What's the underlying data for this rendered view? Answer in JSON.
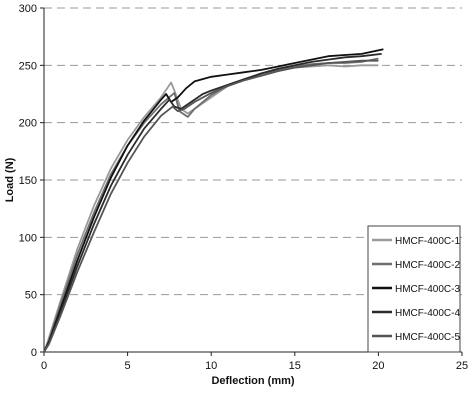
{
  "chart_data": {
    "type": "line",
    "title": "",
    "xlabel": "Deflection (mm)",
    "ylabel": "Load (N)",
    "xlim": [
      0,
      25
    ],
    "ylim": [
      0,
      300
    ],
    "x_ticks": [
      0,
      5,
      10,
      15,
      20,
      25
    ],
    "y_ticks": [
      0,
      50,
      100,
      150,
      200,
      250,
      300
    ],
    "grid": "horizontal dashed",
    "legend_position": "right, lower",
    "series": [
      {
        "name": "HMCF-400C-1",
        "color": "#9a9a9a",
        "x": [
          0,
          0.2,
          1,
          2,
          3,
          4,
          5,
          6,
          7,
          7.6,
          7.8,
          8.2,
          8.6,
          9,
          10,
          11,
          12,
          13,
          14,
          15,
          16,
          17,
          18,
          19,
          20
        ],
        "y": [
          0,
          8,
          45,
          90,
          128,
          160,
          185,
          205,
          222,
          235,
          228,
          212,
          208,
          212,
          222,
          232,
          238,
          242,
          246,
          248,
          249,
          250,
          249,
          250,
          250
        ]
      },
      {
        "name": "HMCF-400C-2",
        "color": "#6e6e6e",
        "x": [
          0,
          0.3,
          1,
          2,
          3,
          4,
          5,
          6,
          7,
          7.8,
          8.1,
          8.6,
          9,
          10,
          11,
          12,
          13,
          14,
          15,
          16,
          17,
          18,
          19,
          20
        ],
        "y": [
          0,
          10,
          42,
          85,
          122,
          155,
          180,
          200,
          216,
          226,
          210,
          205,
          212,
          224,
          233,
          238,
          243,
          246,
          249,
          251,
          252,
          252,
          253,
          256
        ]
      },
      {
        "name": "HMCF-400C-3",
        "color": "#111111",
        "x": [
          0,
          0.3,
          1,
          2,
          3,
          4,
          5,
          6,
          7,
          7.3,
          7.6,
          8,
          8.5,
          9,
          10,
          11,
          12,
          13,
          14,
          15,
          16,
          17,
          18,
          19,
          20.3
        ],
        "y": [
          0,
          9,
          38,
          80,
          118,
          152,
          180,
          202,
          220,
          225,
          218,
          222,
          230,
          236,
          240,
          242,
          244,
          246,
          249,
          252,
          255,
          258,
          259,
          260,
          264
        ]
      },
      {
        "name": "HMCF-400C-4",
        "color": "#2b2b2b",
        "x": [
          0,
          0.3,
          1,
          2,
          3,
          4,
          5,
          6,
          7,
          7.5,
          7.8,
          8.2,
          8.8,
          9.5,
          10,
          11,
          12,
          13,
          14,
          15,
          16,
          17,
          18,
          19,
          20.2
        ],
        "y": [
          0,
          8,
          35,
          75,
          112,
          145,
          172,
          195,
          212,
          220,
          214,
          212,
          218,
          225,
          228,
          233,
          238,
          243,
          247,
          250,
          253,
          255,
          257,
          258,
          260
        ]
      },
      {
        "name": "HMCF-400C-5",
        "color": "#555555",
        "x": [
          0,
          0.3,
          1,
          2,
          3,
          4,
          5,
          6,
          7,
          7.7,
          8,
          8.4,
          9,
          10,
          11,
          12,
          13,
          14,
          15,
          16,
          17,
          18,
          19,
          20
        ],
        "y": [
          0,
          7,
          32,
          70,
          105,
          138,
          165,
          188,
          206,
          214,
          210,
          212,
          218,
          226,
          232,
          237,
          241,
          245,
          248,
          250,
          252,
          253,
          254,
          254
        ]
      }
    ]
  }
}
